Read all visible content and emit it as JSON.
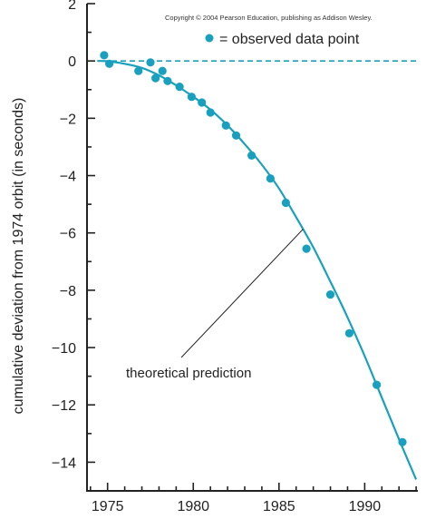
{
  "copyright": "Copyright © 2004 Pearson Education, publishing as Addison Wesley.",
  "colors": {
    "accent": "#1aa0bf",
    "axis": "#222222"
  },
  "chart_data": {
    "type": "scatter",
    "title": "",
    "xlabel": "",
    "ylabel": "cumulative deviation from 1974 orbit (in seconds)",
    "xlim": [
      1973.8,
      1993.1
    ],
    "ylim": [
      -15,
      2
    ],
    "xticks": [
      1975,
      1980,
      1985,
      1990
    ],
    "xtick_labels": [
      "1975",
      "1980",
      "1985",
      "1990"
    ],
    "yticks": [
      2,
      0,
      -2,
      -4,
      -6,
      -8,
      -10,
      -12,
      -14
    ],
    "ytick_labels": [
      "2",
      "0",
      "−2",
      "−4",
      "−6",
      "−8",
      "−10",
      "−12",
      "−14"
    ],
    "legend": {
      "label": "= observed data point",
      "position": "top-right"
    },
    "annotation": {
      "text": "theoretical prediction",
      "points_to_x": 1986.4
    },
    "series": [
      {
        "type": "scatter",
        "name": "observed data point",
        "points": [
          {
            "x": 1974.8,
            "y": 0.2
          },
          {
            "x": 1975.1,
            "y": -0.1
          },
          {
            "x": 1976.8,
            "y": -0.35
          },
          {
            "x": 1977.5,
            "y": -0.05
          },
          {
            "x": 1977.8,
            "y": -0.6
          },
          {
            "x": 1978.2,
            "y": -0.35
          },
          {
            "x": 1978.5,
            "y": -0.7
          },
          {
            "x": 1979.2,
            "y": -0.9
          },
          {
            "x": 1979.9,
            "y": -1.25
          },
          {
            "x": 1980.5,
            "y": -1.45
          },
          {
            "x": 1981.0,
            "y": -1.8
          },
          {
            "x": 1981.9,
            "y": -2.25
          },
          {
            "x": 1982.5,
            "y": -2.6
          },
          {
            "x": 1983.4,
            "y": -3.3
          },
          {
            "x": 1984.5,
            "y": -4.1
          },
          {
            "x": 1985.4,
            "y": -4.95
          },
          {
            "x": 1986.6,
            "y": -6.55
          },
          {
            "x": 1988.0,
            "y": -8.15
          },
          {
            "x": 1989.1,
            "y": -9.5
          },
          {
            "x": 1990.7,
            "y": -11.3
          },
          {
            "x": 1992.2,
            "y": -13.3
          }
        ]
      },
      {
        "type": "line",
        "name": "theoretical prediction",
        "points": [
          {
            "x": 1974.4,
            "y": 0.0
          },
          {
            "x": 1975.0,
            "y": -0.01
          },
          {
            "x": 1976.0,
            "y": -0.1
          },
          {
            "x": 1977.0,
            "y": -0.24
          },
          {
            "x": 1978.0,
            "y": -0.5
          },
          {
            "x": 1979.0,
            "y": -0.85
          },
          {
            "x": 1980.0,
            "y": -1.25
          },
          {
            "x": 1981.0,
            "y": -1.7
          },
          {
            "x": 1982.0,
            "y": -2.25
          },
          {
            "x": 1983.0,
            "y": -2.9
          },
          {
            "x": 1984.0,
            "y": -3.62
          },
          {
            "x": 1985.0,
            "y": -4.45
          },
          {
            "x": 1986.0,
            "y": -5.45
          },
          {
            "x": 1987.0,
            "y": -6.5
          },
          {
            "x": 1988.0,
            "y": -7.7
          },
          {
            "x": 1989.0,
            "y": -8.95
          },
          {
            "x": 1990.0,
            "y": -10.3
          },
          {
            "x": 1991.0,
            "y": -11.75
          },
          {
            "x": 1992.0,
            "y": -13.2
          },
          {
            "x": 1993.0,
            "y": -14.6
          }
        ]
      },
      {
        "type": "reference-line",
        "name": "1974 orbit baseline",
        "y": 0
      }
    ]
  }
}
